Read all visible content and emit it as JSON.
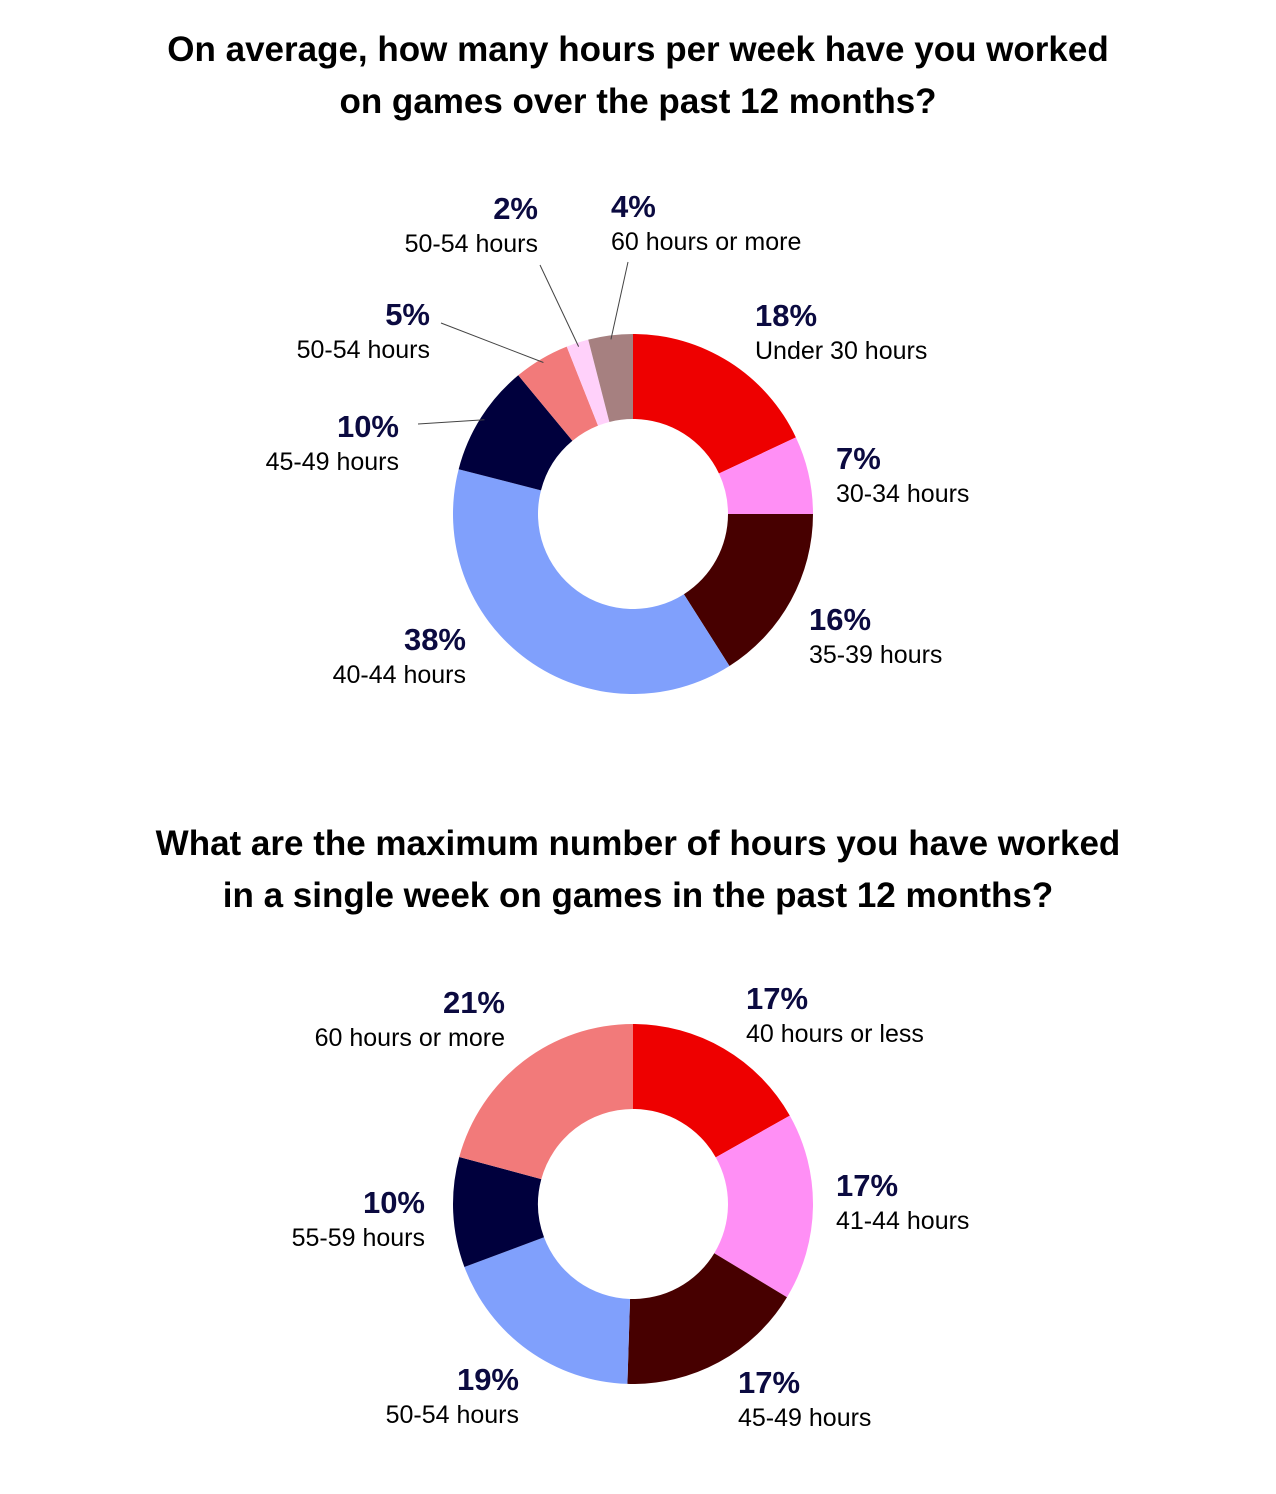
{
  "colors": {
    "red": "#ee0000",
    "pink": "#ff8ff5",
    "maroon": "#470000",
    "periwinkle": "#80a0fc",
    "navy": "#00003d",
    "salmon": "#f27a7a",
    "light_pink": "#ffd1fa",
    "mauve": "#a68080",
    "label_pct": "#0b0a40",
    "label_cat": "#000000",
    "leader": "#444444"
  },
  "chart_data": [
    {
      "type": "pie",
      "variant": "donut",
      "title_lines": [
        "On average, how many hours per week have you worked",
        "on games over the past 12 months?"
      ],
      "slices": [
        {
          "label": "Under 30 hours",
          "value": 18,
          "display": "18%",
          "color": "#ee0000"
        },
        {
          "label": "30-34 hours",
          "value": 7,
          "display": "7%",
          "color": "#ff8ff5"
        },
        {
          "label": "35-39 hours",
          "value": 16,
          "display": "16%",
          "color": "#470000"
        },
        {
          "label": "40-44 hours",
          "value": 38,
          "display": "38%",
          "color": "#80a0fc"
        },
        {
          "label": "45-49 hours",
          "value": 10,
          "display": "10%",
          "color": "#00003d"
        },
        {
          "label": "50-54 hours",
          "value": 5,
          "display": "5%",
          "color": "#f27a7a"
        },
        {
          "label": "50-54 hours",
          "value": 2,
          "display": "2%",
          "color": "#ffd1fa"
        },
        {
          "label": "60 hours or more",
          "value": 4,
          "display": "4%",
          "color": "#a68080"
        }
      ]
    },
    {
      "type": "pie",
      "variant": "donut",
      "title_lines": [
        "What are the maximum number of hours you have worked",
        "in a single week on games in the past 12 months?"
      ],
      "slices": [
        {
          "label": "40 hours or less",
          "value": 17,
          "display": "17%",
          "color": "#ee0000"
        },
        {
          "label": "41-44 hours",
          "value": 17,
          "display": "17%",
          "color": "#ff8ff5"
        },
        {
          "label": "45-49 hours",
          "value": 17,
          "display": "17%",
          "color": "#470000"
        },
        {
          "label": "50-54 hours",
          "value": 19,
          "display": "19%",
          "color": "#80a0fc"
        },
        {
          "label": "55-59 hours",
          "value": 10,
          "display": "10%",
          "color": "#00003d"
        },
        {
          "label": "60 hours or more",
          "value": 21,
          "display": "21%",
          "color": "#f27a7a"
        }
      ]
    }
  ]
}
